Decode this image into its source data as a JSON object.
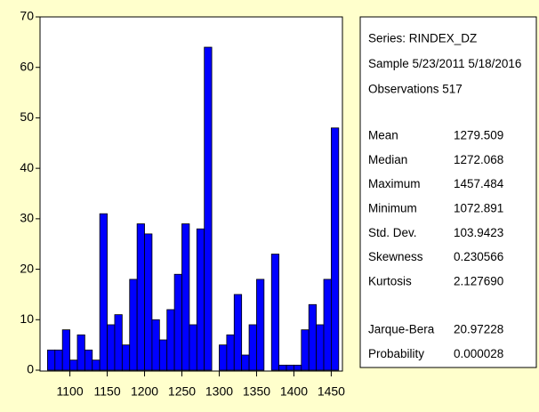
{
  "chart_data": {
    "type": "histogram",
    "bins": [
      1070,
      1080,
      1090,
      1100,
      1110,
      1120,
      1130,
      1140,
      1150,
      1160,
      1170,
      1180,
      1190,
      1200,
      1210,
      1220,
      1230,
      1240,
      1250,
      1260,
      1270,
      1280,
      1290,
      1300,
      1310,
      1320,
      1330,
      1340,
      1350,
      1360,
      1370,
      1380,
      1390,
      1400,
      1410,
      1420,
      1430,
      1440,
      1450,
      1460
    ],
    "values": [
      4,
      4,
      8,
      2,
      7,
      4,
      2,
      31,
      9,
      11,
      5,
      18,
      29,
      27,
      10,
      6,
      12,
      19,
      29,
      9,
      28,
      64,
      0,
      5,
      7,
      15,
      3,
      9,
      18,
      0,
      23,
      1,
      1,
      1,
      8,
      13,
      9,
      18,
      48
    ],
    "color": "#0000ff",
    "xlim": [
      1060,
      1465
    ],
    "xticks": [
      1100,
      1150,
      1200,
      1250,
      1300,
      1350,
      1400,
      1450
    ],
    "ylim": [
      0,
      70
    ],
    "yticks": [
      0,
      10,
      20,
      30,
      40,
      50,
      60,
      70
    ]
  },
  "stats": {
    "header": [
      "Series: RINDEX_DZ",
      "Sample 5/23/2011 5/18/2016",
      "Observations 517"
    ],
    "rows": [
      [
        "Mean",
        "1279.509"
      ],
      [
        "Median",
        "1272.068"
      ],
      [
        "Maximum",
        "1457.484"
      ],
      [
        "Minimum",
        "1072.891"
      ],
      [
        "Std. Dev.",
        "103.9423"
      ],
      [
        "Skewness",
        "0.230566"
      ],
      [
        "Kurtosis",
        "2.127690"
      ]
    ],
    "test_rows": [
      [
        "Jarque-Bera",
        "20.97228"
      ],
      [
        "Probability",
        "0.000028"
      ]
    ]
  }
}
